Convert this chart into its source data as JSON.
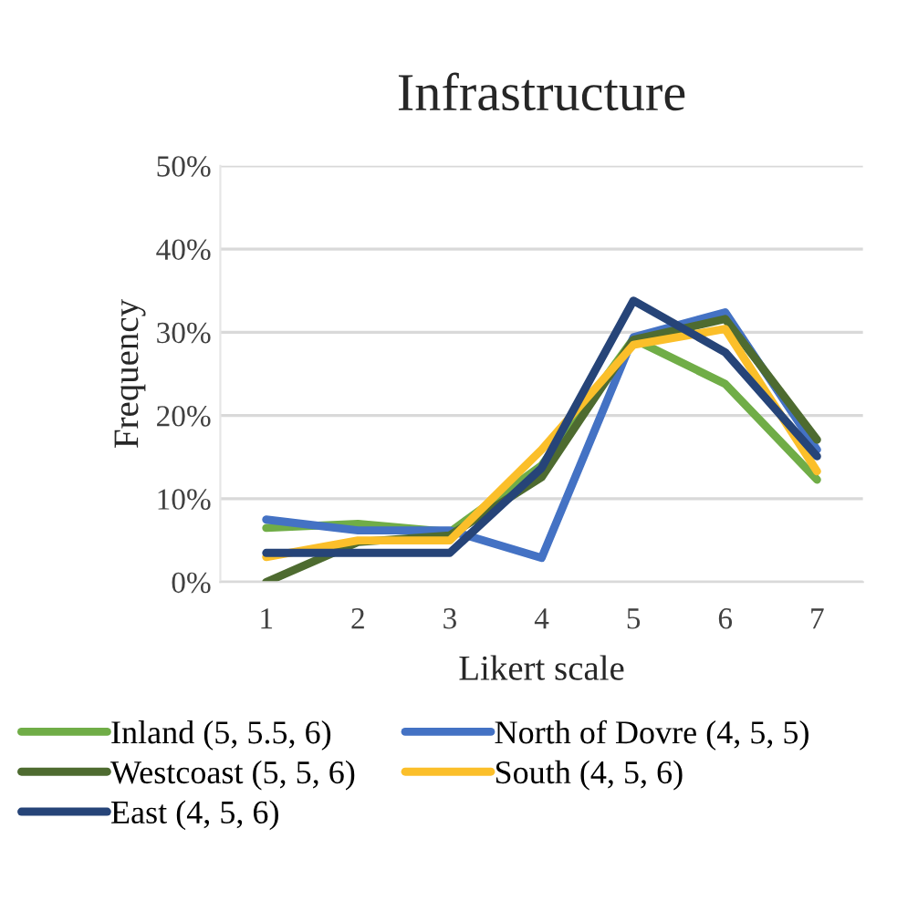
{
  "chart_data": {
    "type": "line",
    "title": "Infrastructure",
    "xlabel": "Likert scale",
    "ylabel": "Frequency",
    "categories": [
      "1",
      "2",
      "3",
      "4",
      "5",
      "6",
      "7"
    ],
    "series": [
      {
        "name": "Inland (5, 5.5, 6)",
        "color": "#70ad47",
        "values": [
          6.5,
          7.0,
          6.0,
          14.0,
          29.2,
          23.8,
          12.3
        ]
      },
      {
        "name": "North of Dovre (4, 5, 5)",
        "color": "#4472c4",
        "values": [
          7.5,
          6.2,
          6.2,
          2.9,
          29.4,
          32.4,
          15.9
        ]
      },
      {
        "name": "Westcoast (5, 5, 6)",
        "color": "#4e6b30",
        "values": [
          0,
          4.8,
          5.6,
          12.6,
          29.1,
          31.6,
          17.1
        ]
      },
      {
        "name": "South (4, 5, 6)",
        "color": "#fbbf2a",
        "values": [
          3.0,
          5.0,
          5.0,
          15.9,
          28.5,
          30.4,
          13.3
        ]
      },
      {
        "name": "East (4, 5, 6)",
        "color": "#264478",
        "values": [
          3.5,
          3.5,
          3.5,
          13.7,
          33.8,
          27.6,
          15.1
        ]
      }
    ],
    "ylim": [
      0,
      50
    ],
    "yticks": [
      {
        "value": 0,
        "label": "0%"
      },
      {
        "value": 10,
        "label": "10%"
      },
      {
        "value": 20,
        "label": "20%"
      },
      {
        "value": 30,
        "label": "30%"
      },
      {
        "value": 40,
        "label": "40%"
      },
      {
        "value": 50,
        "label": "50%"
      }
    ],
    "grid": "y",
    "legend": "bottom",
    "marker": "none",
    "line_style": "solid"
  }
}
